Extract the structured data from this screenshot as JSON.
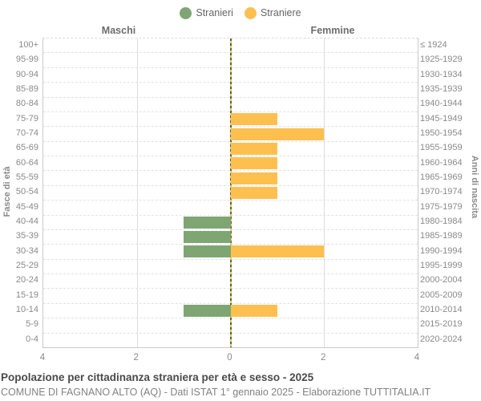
{
  "headers": {
    "left": "Maschi",
    "right": "Femmine"
  },
  "axis": {
    "y_left_title": "Fasce di età",
    "y_right_title": "Anni di nascita",
    "x_ticks": [
      {
        "label": "4",
        "pos": 0
      },
      {
        "label": "2",
        "pos": 25
      },
      {
        "label": "0",
        "pos": 50
      },
      {
        "label": "2",
        "pos": 75
      },
      {
        "label": "4",
        "pos": 100
      }
    ]
  },
  "chart_data": {
    "type": "bar",
    "variant": "population-pyramid-horizontal",
    "title": "Popolazione per cittadinanza straniera per età e sesso - 2025",
    "subtitle": "COMUNE DI FAGNANO ALTO (AQ) - Dati ISTAT 1° gennaio 2025 - Elaborazione TUTTITALIA.IT",
    "x_max": 4,
    "xlim": [
      -4,
      4
    ],
    "grid": "horizontal-dashed, vertical-solid-at-even-values",
    "legend_position": "top-center",
    "age_groups": [
      "100+",
      "95-99",
      "90-94",
      "85-89",
      "80-84",
      "75-79",
      "70-74",
      "65-69",
      "60-64",
      "55-59",
      "50-54",
      "45-49",
      "40-44",
      "35-39",
      "30-34",
      "25-29",
      "20-24",
      "15-19",
      "10-14",
      "5-9",
      "0-4"
    ],
    "birth_years": [
      "≤ 1924",
      "1925-1929",
      "1930-1934",
      "1935-1939",
      "1940-1944",
      "1945-1949",
      "1950-1954",
      "1955-1959",
      "1960-1964",
      "1965-1969",
      "1970-1974",
      "1975-1979",
      "1980-1984",
      "1985-1989",
      "1990-1994",
      "1995-1999",
      "2000-2004",
      "2005-2009",
      "2010-2014",
      "2015-2019",
      "2020-2024"
    ],
    "series": [
      {
        "name": "Stranieri",
        "side": "left",
        "color": "#7fa573",
        "values": [
          0,
          0,
          0,
          0,
          0,
          0,
          0,
          0,
          0,
          0,
          0,
          0,
          1,
          1,
          1,
          0,
          0,
          0,
          1,
          0,
          0
        ]
      },
      {
        "name": "Straniere",
        "side": "right",
        "color": "#fdc04f",
        "values": [
          0,
          0,
          0,
          0,
          0,
          1,
          2,
          1,
          1,
          1,
          1,
          0,
          0,
          0,
          2,
          0,
          0,
          0,
          1,
          0,
          0
        ]
      }
    ]
  }
}
